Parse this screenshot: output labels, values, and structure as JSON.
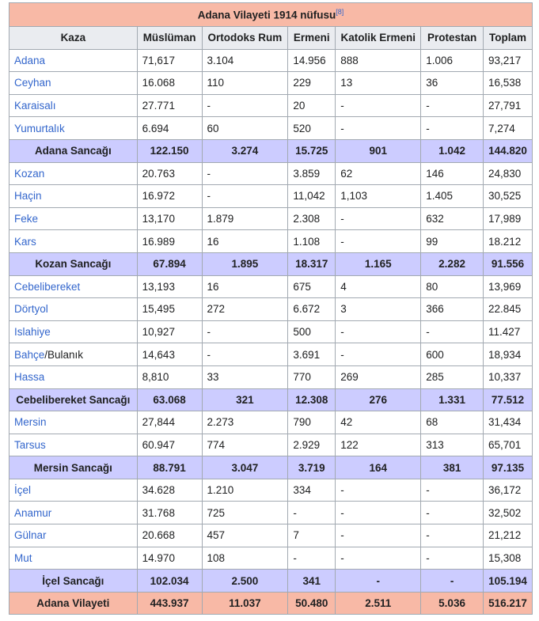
{
  "table": {
    "title": "Adana Vilayeti 1914 nüfusu",
    "title_ref": "[8]",
    "headers": [
      "Kaza",
      "Müslüman",
      "Ortodoks Rum",
      "Ermeni",
      "Katolik Ermeni",
      "Protestan",
      "Toplam"
    ],
    "rows": [
      {
        "type": "kaza",
        "name": "Adana",
        "values": [
          "71,617",
          "3.104",
          "14.956",
          "888",
          "1.006",
          "93,217"
        ]
      },
      {
        "type": "kaza",
        "name": "Ceyhan",
        "values": [
          "16.068",
          "110",
          "229",
          "13",
          "36",
          "16,538"
        ]
      },
      {
        "type": "kaza",
        "name": "Karaisalı",
        "values": [
          "27.771",
          "-",
          "20",
          "-",
          "-",
          "27,791"
        ]
      },
      {
        "type": "kaza",
        "name": "Yumurtalık",
        "values": [
          "6.694",
          "60",
          "520",
          "-",
          "-",
          "7,274"
        ]
      },
      {
        "type": "sancak",
        "name": "Adana Sancağı",
        "values": [
          "122.150",
          "3.274",
          "15.725",
          "901",
          "1.042",
          "144.820"
        ]
      },
      {
        "type": "kaza",
        "name": "Kozan",
        "values": [
          "20.763",
          "-",
          "3.859",
          "62",
          "146",
          "24,830"
        ]
      },
      {
        "type": "kaza",
        "name": "Haçin",
        "values": [
          "16.972",
          "-",
          "11,042",
          "1,103",
          "1.405",
          "30,525"
        ]
      },
      {
        "type": "kaza",
        "name": "Feke",
        "values": [
          "13,170",
          "1.879",
          "2.308",
          "-",
          "632",
          "17,989"
        ]
      },
      {
        "type": "kaza",
        "name": "Kars",
        "values": [
          "16.989",
          "16",
          "1.108",
          "-",
          "99",
          "18.212"
        ]
      },
      {
        "type": "sancak",
        "name": "Kozan Sancağı",
        "values": [
          "67.894",
          "1.895",
          "18.317",
          "1.165",
          "2.282",
          "91.556"
        ]
      },
      {
        "type": "kaza",
        "name": "Cebelibereket",
        "values": [
          "13,193",
          "16",
          "675",
          "4",
          "80",
          "13,969"
        ]
      },
      {
        "type": "kaza",
        "name": "Dörtyol",
        "values": [
          "15,495",
          "272",
          "6.672",
          "3",
          "366",
          "22.845"
        ]
      },
      {
        "type": "kaza",
        "name": "Islahiye",
        "values": [
          "10,927",
          "-",
          "500",
          "-",
          "-",
          "11.427"
        ]
      },
      {
        "type": "kaza",
        "name": "Bahçe",
        "name_suffix": "/Bulanık",
        "values": [
          "14,643",
          "-",
          "3.691",
          "-",
          "600",
          "18,934"
        ]
      },
      {
        "type": "kaza",
        "name": "Hassa",
        "values": [
          "8,810",
          "33",
          "770",
          "269",
          "285",
          "10,337"
        ]
      },
      {
        "type": "sancak",
        "name": "Cebelibereket Sancağı",
        "values": [
          "63.068",
          "321",
          "12.308",
          "276",
          "1.331",
          "77.512"
        ]
      },
      {
        "type": "kaza",
        "name": "Mersin",
        "values": [
          "27,844",
          "2.273",
          "790",
          "42",
          "68",
          "31,434"
        ]
      },
      {
        "type": "kaza",
        "name": "Tarsus",
        "values": [
          "60.947",
          "774",
          "2.929",
          "122",
          "313",
          "65,701"
        ]
      },
      {
        "type": "sancak",
        "name": "Mersin Sancağı",
        "values": [
          "88.791",
          "3.047",
          "3.719",
          "164",
          "381",
          "97.135"
        ]
      },
      {
        "type": "kaza",
        "name": "İçel",
        "values": [
          "34.628",
          "1.210",
          "334",
          "-",
          "-",
          "36,172"
        ]
      },
      {
        "type": "kaza",
        "name": "Anamur",
        "values": [
          "31.768",
          "725",
          "-",
          "-",
          "-",
          "32,502"
        ]
      },
      {
        "type": "kaza",
        "name": "Gülnar",
        "values": [
          "20.668",
          "457",
          "7",
          "-",
          "-",
          "21,212"
        ]
      },
      {
        "type": "kaza",
        "name": "Mut",
        "values": [
          "14.970",
          "108",
          "-",
          "-",
          "-",
          "15,308"
        ]
      },
      {
        "type": "sancak",
        "name": "İçel Sancağı",
        "values": [
          "102.034",
          "2.500",
          "341",
          "-",
          "-",
          "105.194"
        ]
      },
      {
        "type": "total",
        "name": "Adana Vilayeti",
        "values": [
          "443.937",
          "11.037",
          "50.480",
          "2.511",
          "5.036",
          "516.217"
        ]
      }
    ]
  },
  "colors": {
    "title_bg": "#f8b9a6",
    "sancak_bg": "#ccccff",
    "header_bg": "#eaecf0",
    "link": "#3366cc"
  }
}
